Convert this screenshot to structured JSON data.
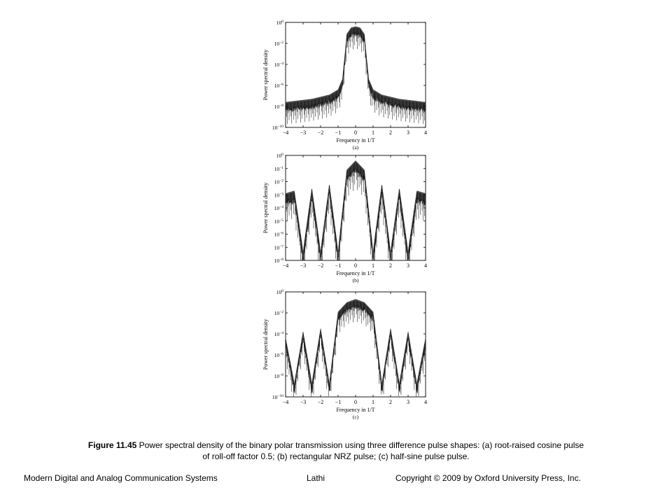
{
  "chart_data": [
    {
      "type": "line",
      "panel_label": "(a)",
      "xlabel": "Frequency in 1/T",
      "ylabel": "Power spectral density",
      "xlim": [
        -4,
        4
      ],
      "ylim_exponent": [
        -10,
        0
      ],
      "log_y": true,
      "grid": false,
      "x_ticks": [
        "−4",
        "−3",
        "−2",
        "−1",
        "0",
        "1",
        "2",
        "3",
        "4"
      ],
      "y_ticks": [
        "10^0",
        "10^−2",
        "10^−4",
        "10^−6",
        "10^−8",
        "10^−10"
      ],
      "y_tick_exponents": [
        0,
        -2,
        -4,
        -6,
        -8,
        -10
      ],
      "series": [
        {
          "x": [
            -4,
            -3.5,
            -3,
            -2.5,
            -2,
            -1.5,
            -1,
            -0.75,
            -0.6,
            -0.5,
            -0.25,
            0,
            0.25,
            0.5,
            0.6,
            0.75,
            1,
            1.5,
            2,
            2.5,
            3,
            3.5,
            4
          ],
          "y_exponent": [
            -7.7,
            -7.6,
            -7.5,
            -7.4,
            -7.2,
            -7,
            -6.5,
            -5.5,
            -3,
            -1.2,
            -0.6,
            -0.5,
            -0.6,
            -1.2,
            -3,
            -5.5,
            -6.5,
            -7,
            -7.2,
            -7.4,
            -7.5,
            -7.6,
            -7.7
          ]
        }
      ]
    },
    {
      "type": "line",
      "panel_label": "(b)",
      "xlabel": "Frequency in 1/T",
      "ylabel": "Power spectral density",
      "xlim": [
        -4,
        4
      ],
      "ylim_exponent": [
        -8,
        0
      ],
      "log_y": true,
      "grid": false,
      "x_ticks": [
        "−4",
        "−3",
        "−2",
        "−1",
        "0",
        "1",
        "2",
        "3",
        "4"
      ],
      "y_ticks": [
        "10^0",
        "10^−1",
        "10^−2",
        "10^−3",
        "10^−4",
        "10^−5",
        "10^−6",
        "10^−7",
        "10^−8"
      ],
      "y_tick_exponents": [
        0,
        -1,
        -2,
        -3,
        -4,
        -5,
        -6,
        -7,
        -8
      ],
      "nulls": [
        -3,
        -2,
        -1,
        1,
        2,
        3
      ],
      "null_depth_exponent": -7.4,
      "series": [
        {
          "x": [
            -4,
            -3.5,
            -3,
            -2.5,
            -2,
            -1.5,
            -1,
            -0.5,
            0,
            0.5,
            1,
            1.5,
            2,
            2.5,
            3,
            3.5,
            4
          ],
          "y_exponent": [
            -3,
            -2.8,
            -7.4,
            -2.6,
            -7.4,
            -2.3,
            -7.4,
            -1.2,
            -0.5,
            -1.2,
            -7.4,
            -2.3,
            -7.4,
            -2.6,
            -7.4,
            -2.8,
            -3
          ]
        }
      ]
    },
    {
      "type": "line",
      "panel_label": "(c)",
      "xlabel": "Frequency in 1/T",
      "ylabel": "Power spectral density",
      "xlim": [
        -4,
        4
      ],
      "ylim_exponent": [
        -10,
        0
      ],
      "log_y": true,
      "grid": false,
      "x_ticks": [
        "−4",
        "−3",
        "−2",
        "−1",
        "0",
        "1",
        "2",
        "3",
        "4"
      ],
      "y_ticks": [
        "10^0",
        "10^−2",
        "10^−4",
        "10^−6",
        "10^−8",
        "10^−10"
      ],
      "y_tick_exponents": [
        0,
        -2,
        -4,
        -6,
        -8,
        -10
      ],
      "nulls": [
        -3.5,
        -2.5,
        -1.5,
        1.5,
        2.5,
        3.5
      ],
      "null_depth_exponent": -8.8,
      "series": [
        {
          "x": [
            -4,
            -3.5,
            -3,
            -2.5,
            -2,
            -1.5,
            -1,
            -0.5,
            0,
            0.5,
            1,
            1.5,
            2,
            2.5,
            3,
            3.5,
            4
          ],
          "y_exponent": [
            -4.5,
            -8.8,
            -3.9,
            -8.8,
            -3.6,
            -8.8,
            -2,
            -1.1,
            -0.8,
            -1.1,
            -2,
            -8.8,
            -3.6,
            -8.8,
            -3.9,
            -8.8,
            -4.5
          ]
        }
      ]
    }
  ],
  "caption": {
    "label": "Figure 11.45",
    "text": " Power spectral density of the binary polar transmission using three  difference pulse shapes: (a) root-raised cosine pulse of roll-off factor 0.5; (b) rectangular NRZ  pulse; (c)  half-sine pulse pulse."
  },
  "footer": {
    "book": "Modern Digital and Analog Communication Systems",
    "author": "Lathi",
    "copyright": "Copyright © 2009  by Oxford University Press, Inc."
  }
}
